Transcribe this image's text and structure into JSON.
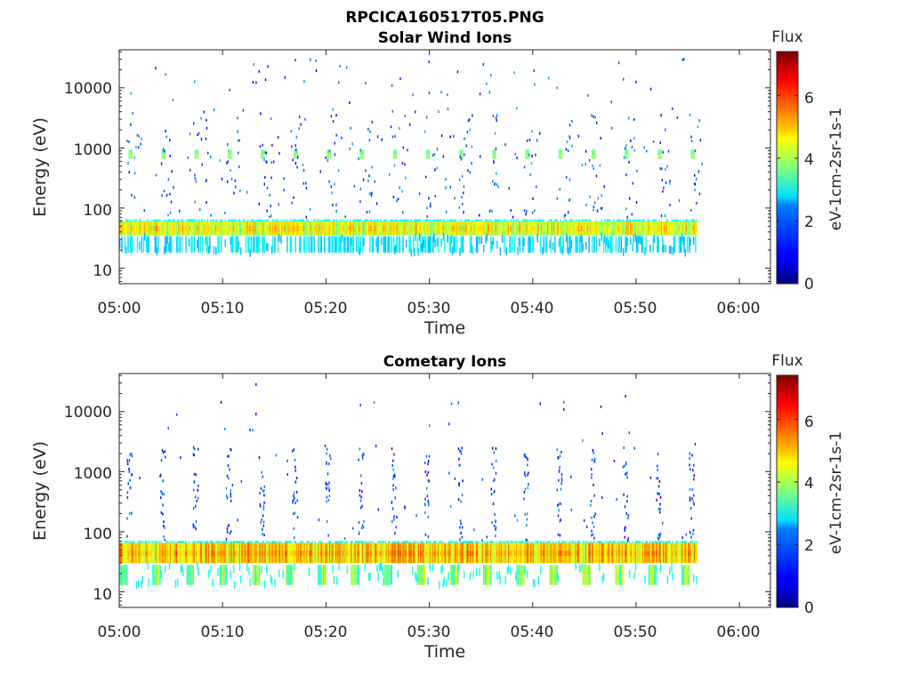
{
  "figure": {
    "title": "RPCICA160517T05.PNG"
  },
  "chart_data": [
    {
      "type": "heatmap",
      "title": "Solar Wind Ions",
      "xlabel": "Time",
      "ylabel": "Energy (eV)",
      "x_ticks": [
        "05:00",
        "05:10",
        "05:20",
        "05:30",
        "05:40",
        "05:50",
        "06:00"
      ],
      "x_range_minutes": [
        0,
        63
      ],
      "data_time_range_minutes": [
        0,
        55.9
      ],
      "y_scale": "log",
      "y_ticks": [
        10,
        100,
        1000,
        10000
      ],
      "y_range_ev": [
        5.5,
        43000
      ],
      "colorbar": {
        "label_top": "Flux",
        "label_side": "eV-1cm-2sr-1s-1",
        "range": [
          0,
          7.4
        ],
        "ticks": [
          0,
          2,
          4,
          6
        ],
        "colormap": "jet"
      },
      "features": {
        "main_band": {
          "energy_ev": [
            35,
            60
          ],
          "flux": [
            3.5,
            5.2
          ]
        },
        "lower_band": {
          "energy_ev": [
            18,
            34
          ],
          "flux": [
            2.2,
            3.0
          ]
        },
        "energy_sweep_interval_min": 3.2,
        "peak_energy_ev": 780,
        "peak_flux": 3.6,
        "sparse_high_energy_flux": [
          0.8,
          2.2
        ]
      }
    },
    {
      "type": "heatmap",
      "title": "Cometary Ions",
      "xlabel": "Time",
      "ylabel": "Energy (eV)",
      "x_ticks": [
        "05:00",
        "05:10",
        "05:20",
        "05:30",
        "05:40",
        "05:50",
        "06:00"
      ],
      "x_range_minutes": [
        0,
        63
      ],
      "data_time_range_minutes": [
        0,
        55.9
      ],
      "y_scale": "log",
      "y_ticks": [
        10,
        100,
        1000,
        10000
      ],
      "y_range_ev": [
        5.5,
        43000
      ],
      "colorbar": {
        "label_top": "Flux",
        "label_side": "eV-1cm-2sr-1s-1",
        "range": [
          0,
          7.4
        ],
        "ticks": [
          0,
          2,
          4,
          6
        ],
        "colormap": "jet"
      },
      "features": {
        "main_band": {
          "energy_ev": [
            30,
            65
          ],
          "flux": [
            4.0,
            5.8
          ]
        },
        "lower_band": {
          "energy_ev": [
            13,
            28
          ],
          "flux": [
            2.8,
            4.6
          ]
        },
        "energy_sweep_interval_min": 3.2,
        "sparse_high_energy_flux": [
          0.8,
          2.0
        ]
      }
    }
  ]
}
